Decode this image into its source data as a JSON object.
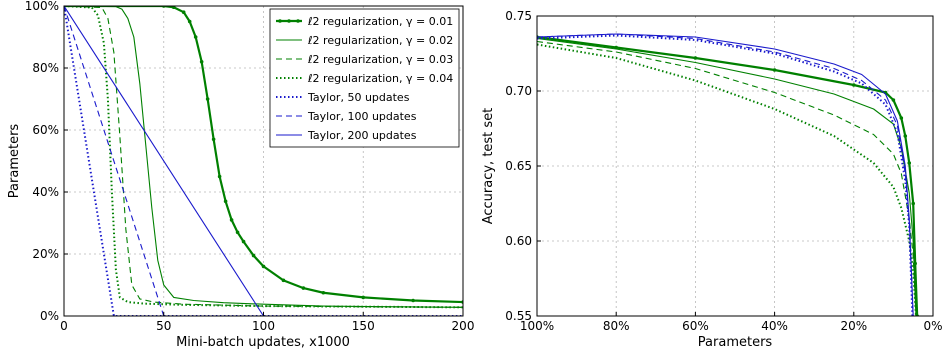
{
  "chart_data": [
    {
      "type": "line",
      "title": "",
      "xlabel": "Mini-batch updates, x1000",
      "ylabel": "Parameters",
      "xlim": [
        0,
        200
      ],
      "ylim": [
        0,
        100
      ],
      "xticks": [
        0,
        50,
        100,
        150,
        200
      ],
      "xtick_labels": [
        "0",
        "50",
        "100",
        "150",
        "200"
      ],
      "yticks": [
        0,
        20,
        40,
        60,
        80,
        100
      ],
      "ytick_labels": [
        "0%",
        "20%",
        "40%",
        "60%",
        "80%",
        "100%"
      ],
      "grid": true,
      "legend_position": "top-right",
      "series": [
        {
          "name": "ℓ2 regularization, γ = 0.01",
          "color": "#008000",
          "style": "solid-marker",
          "x": [
            0,
            50,
            55,
            60,
            63,
            66,
            69,
            72,
            75,
            78,
            81,
            84,
            87,
            90,
            95,
            100,
            110,
            120,
            130,
            150,
            175,
            200
          ],
          "y": [
            100,
            100,
            99.6,
            98,
            95,
            90,
            82,
            70,
            57,
            45,
            37,
            31,
            27,
            24,
            19.5,
            16,
            11.5,
            9,
            7.5,
            6,
            5,
            4.5
          ]
        },
        {
          "name": "ℓ2 regularization, γ = 0.02",
          "color": "#008000",
          "style": "solid",
          "x": [
            0,
            26,
            29,
            32,
            35,
            38,
            41,
            44,
            47,
            50,
            55,
            65,
            80,
            100,
            130,
            160,
            200
          ],
          "y": [
            100,
            99.8,
            99,
            96,
            90,
            75,
            55,
            35,
            18,
            10,
            6,
            5,
            4.3,
            3.8,
            3.2,
            3,
            2.8
          ]
        },
        {
          "name": "ℓ2 regularization, γ = 0.03",
          "color": "#008000",
          "style": "dashed",
          "x": [
            0,
            19,
            22,
            25,
            28,
            31,
            34,
            38,
            45,
            60,
            100,
            150,
            200
          ],
          "y": [
            100,
            99.5,
            96,
            85,
            58,
            28,
            10,
            5.5,
            4.5,
            3.8,
            3.2,
            3,
            2.8
          ]
        },
        {
          "name": "ℓ2 regularization, γ = 0.04",
          "color": "#008000",
          "style": "dotted",
          "x": [
            0,
            14,
            17,
            20,
            22,
            24,
            26,
            28,
            32,
            40,
            60,
            100,
            150,
            200
          ],
          "y": [
            100,
            99.5,
            97,
            88,
            70,
            40,
            15,
            6,
            4.5,
            4,
            3.6,
            3.2,
            3,
            2.8
          ]
        },
        {
          "name": "Taylor, 50 updates",
          "color": "#1a1acc",
          "style": "dotted",
          "x": [
            0,
            25,
            200
          ],
          "y": [
            100,
            0,
            0
          ]
        },
        {
          "name": "Taylor, 100 updates",
          "color": "#1a1acc",
          "style": "dashed",
          "x": [
            0,
            50,
            200
          ],
          "y": [
            100,
            0,
            0
          ]
        },
        {
          "name": "Taylor, 200 updates",
          "color": "#1a1acc",
          "style": "solid",
          "x": [
            0,
            100,
            200
          ],
          "y": [
            100,
            0,
            0
          ]
        }
      ]
    },
    {
      "type": "line",
      "title": "",
      "xlabel": "Parameters",
      "ylabel": "Accuracy, test set",
      "xlim": [
        100,
        0
      ],
      "ylim": [
        0.55,
        0.75
      ],
      "xticks": [
        100,
        80,
        60,
        40,
        20,
        0
      ],
      "xtick_labels": [
        "100%",
        "80%",
        "60%",
        "40%",
        "20%",
        "0%"
      ],
      "yticks": [
        0.55,
        0.6,
        0.65,
        0.7,
        0.75
      ],
      "ytick_labels": [
        "0.55",
        "0.60",
        "0.65",
        "0.70",
        "0.75"
      ],
      "grid": true,
      "series": [
        {
          "color": "#008000",
          "style": "solid-marker",
          "x": [
            100,
            80,
            60,
            40,
            20,
            12,
            10,
            8,
            7,
            6,
            5,
            4.5,
            4
          ],
          "y": [
            0.736,
            0.729,
            0.722,
            0.714,
            0.704,
            0.699,
            0.694,
            0.682,
            0.67,
            0.652,
            0.625,
            0.585,
            0.55
          ]
        },
        {
          "color": "#008000",
          "style": "solid",
          "x": [
            100,
            80,
            60,
            40,
            25,
            15,
            10,
            8,
            6,
            5,
            4.3
          ],
          "y": [
            0.735,
            0.728,
            0.719,
            0.708,
            0.698,
            0.688,
            0.678,
            0.662,
            0.632,
            0.6,
            0.55
          ]
        },
        {
          "color": "#008000",
          "style": "dashed",
          "x": [
            100,
            80,
            60,
            40,
            25,
            15,
            10,
            8,
            6,
            5,
            4.3
          ],
          "y": [
            0.733,
            0.726,
            0.715,
            0.699,
            0.684,
            0.671,
            0.658,
            0.645,
            0.615,
            0.59,
            0.55
          ]
        },
        {
          "color": "#008000",
          "style": "dotted",
          "x": [
            100,
            80,
            60,
            40,
            25,
            15,
            10,
            8,
            6,
            5,
            4.3
          ],
          "y": [
            0.731,
            0.722,
            0.707,
            0.688,
            0.67,
            0.652,
            0.636,
            0.622,
            0.6,
            0.58,
            0.55
          ]
        },
        {
          "color": "#1a1acc",
          "style": "dotted",
          "x": [
            100,
            80,
            60,
            40,
            25,
            18,
            12,
            9,
            7,
            6,
            5.2
          ],
          "y": [
            0.735,
            0.737,
            0.734,
            0.725,
            0.713,
            0.705,
            0.691,
            0.672,
            0.64,
            0.61,
            0.55
          ]
        },
        {
          "color": "#1a1acc",
          "style": "dashed",
          "x": [
            100,
            80,
            60,
            40,
            25,
            18,
            12,
            9,
            7,
            6,
            5.0
          ],
          "y": [
            0.736,
            0.738,
            0.735,
            0.726,
            0.715,
            0.707,
            0.694,
            0.677,
            0.645,
            0.612,
            0.55
          ]
        },
        {
          "color": "#1a1acc",
          "style": "solid",
          "x": [
            100,
            80,
            60,
            40,
            25,
            18,
            12,
            9,
            7,
            6,
            5.0
          ],
          "y": [
            0.736,
            0.738,
            0.736,
            0.728,
            0.718,
            0.711,
            0.698,
            0.68,
            0.65,
            0.615,
            0.55
          ]
        }
      ]
    }
  ]
}
